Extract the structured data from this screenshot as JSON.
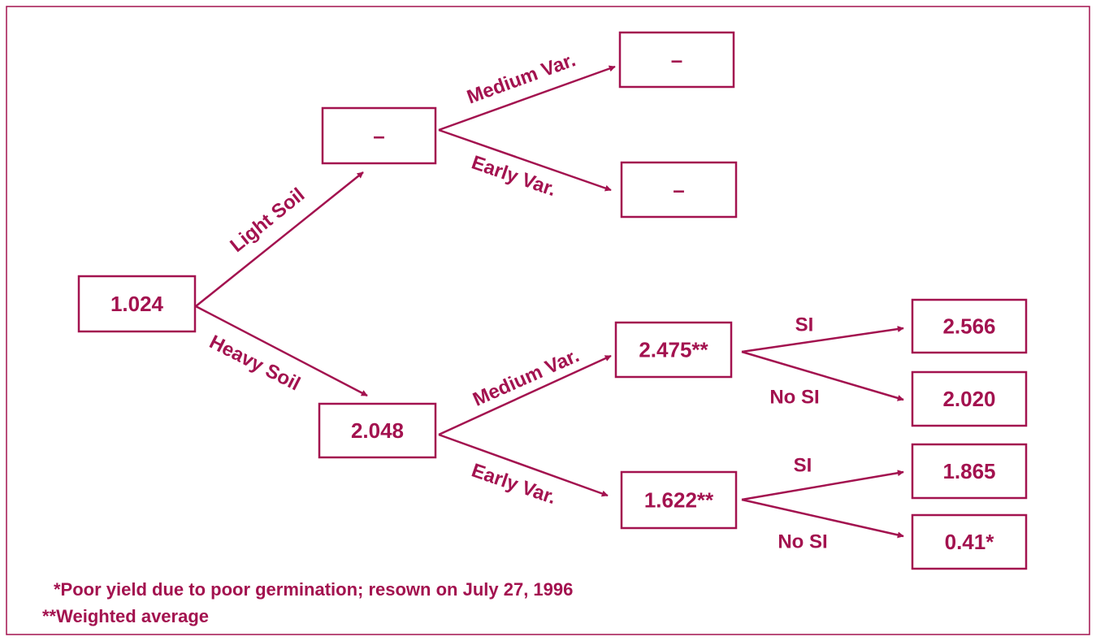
{
  "nodes": [
    {
      "label": "1.024"
    },
    {
      "label": "–"
    },
    {
      "label": "–"
    },
    {
      "label": "–"
    },
    {
      "label": "2.048"
    },
    {
      "label": "2.475**"
    },
    {
      "label": "1.622**"
    },
    {
      "label": "2.566"
    },
    {
      "label": "2.020"
    },
    {
      "label": "1.865"
    },
    {
      "label": "0.41*"
    }
  ],
  "edges": [
    {
      "label": "Light Soil"
    },
    {
      "label": "Heavy Soil"
    },
    {
      "label": "Medium Var."
    },
    {
      "label": "Early Var."
    },
    {
      "label": "Medium Var."
    },
    {
      "label": "Early Var."
    },
    {
      "label": "SI"
    },
    {
      "label": "No SI"
    },
    {
      "label": "SI"
    },
    {
      "label": "No SI"
    }
  ],
  "notes": [
    "*Poor yield due to poor germination; resown on July 27, 1996",
    "**Weighted average"
  ]
}
